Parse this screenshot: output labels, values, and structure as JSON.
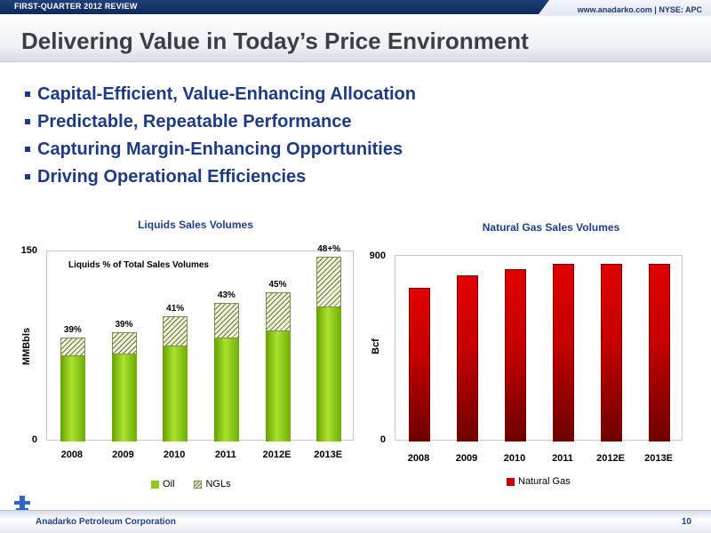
{
  "header": {
    "section_label": "FIRST-QUARTER 2012 REVIEW",
    "url_text": "www.anadarko.com | NYSE: APC",
    "title": "Delivering Value in Today’s Price Environment"
  },
  "bullets": [
    "Capital-Efficient, Value-Enhancing Allocation",
    "Predictable, Repeatable Performance",
    "Capturing Margin-Enhancing Opportunities",
    "Driving Operational Efficiencies"
  ],
  "footer": {
    "company": "Anadarko Petroleum Corporation",
    "page_number": "10"
  },
  "colors": {
    "navy": "#1d3f8f",
    "oil_green": "#8cc81a",
    "gas_red": "#c40000"
  },
  "chart_data": [
    {
      "type": "bar",
      "stacked": true,
      "title": "Liquids Sales Volumes",
      "subtitle": "Liquids % of Total Sales Volumes",
      "ylabel": "MMBbls",
      "xlabel": "",
      "ylim": [
        0,
        150
      ],
      "y_tick_labels": [
        "150",
        "0"
      ],
      "categories": [
        "2008",
        "2009",
        "2010",
        "2011",
        "2012E",
        "2013E"
      ],
      "series": [
        {
          "name": "Oil",
          "values": [
            67,
            69,
            75,
            81,
            87,
            106
          ]
        },
        {
          "name": "NGLs",
          "values": [
            15,
            17,
            24,
            28,
            31,
            40
          ]
        }
      ],
      "data_labels": [
        "39%",
        "39%",
        "41%",
        "43%",
        "45%",
        "48+%"
      ],
      "legend_position": "bottom",
      "grid": false
    },
    {
      "type": "bar",
      "title": "Natural Gas Sales Volumes",
      "ylabel": "Bcf",
      "xlabel": "",
      "ylim": [
        0,
        900
      ],
      "y_tick_labels": [
        "900",
        "0"
      ],
      "categories": [
        "2008",
        "2009",
        "2010",
        "2011",
        "2012E",
        "2013E"
      ],
      "series": [
        {
          "name": "Natural Gas",
          "values": [
            745,
            805,
            835,
            860,
            860,
            860
          ]
        }
      ],
      "legend_position": "bottom",
      "grid": false
    }
  ]
}
